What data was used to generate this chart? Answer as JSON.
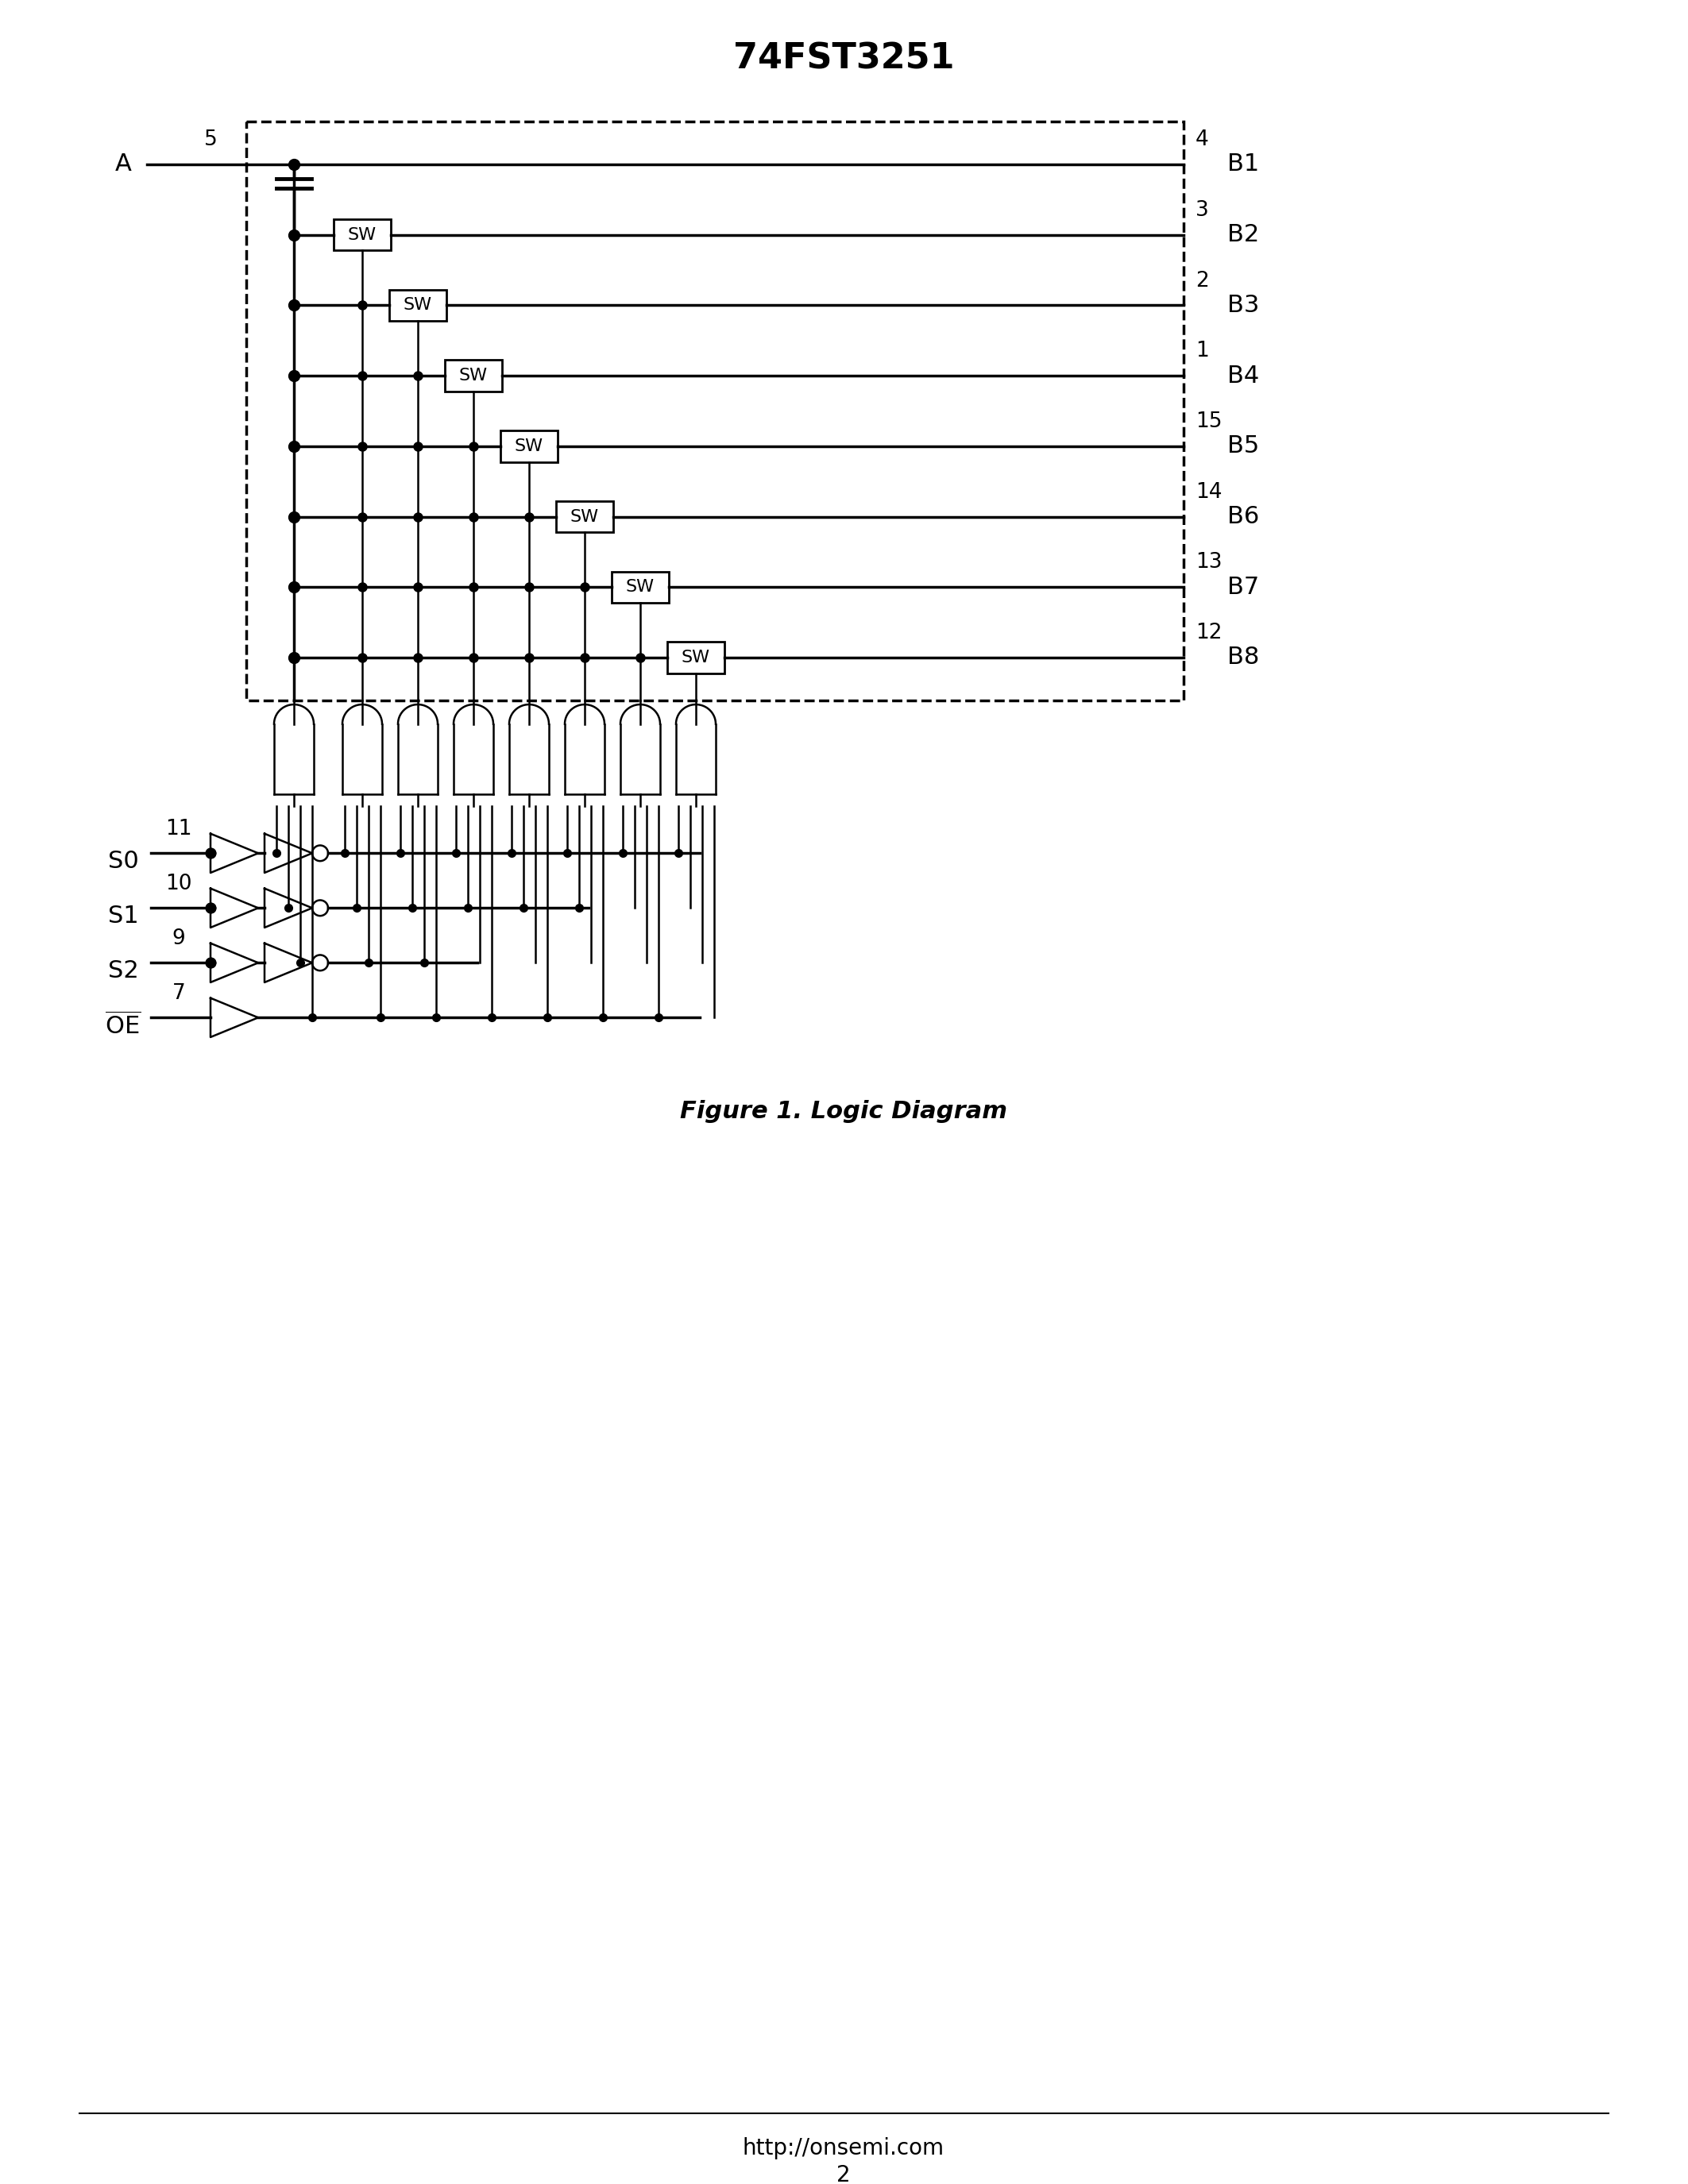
{
  "title": "74FST3251",
  "figure_caption": "Figure 1. Logic Diagram",
  "footer_url": "http://onsemi.com",
  "footer_page": "2",
  "bg_color": "#ffffff",
  "line_color": "#000000",
  "b_pins": [
    "B1",
    "B2",
    "B3",
    "B4",
    "B5",
    "B6",
    "B7",
    "B8"
  ],
  "b_pin_nums": [
    "4",
    "3",
    "2",
    "1",
    "15",
    "14",
    "13",
    "12"
  ],
  "a_pin_num": "5",
  "a_label": "A",
  "s_labels": [
    "S0",
    "S1",
    "S2"
  ],
  "s_pin_nums": [
    "11",
    "10",
    "9"
  ],
  "oe_label": "OE",
  "oe_pin_num": "7"
}
